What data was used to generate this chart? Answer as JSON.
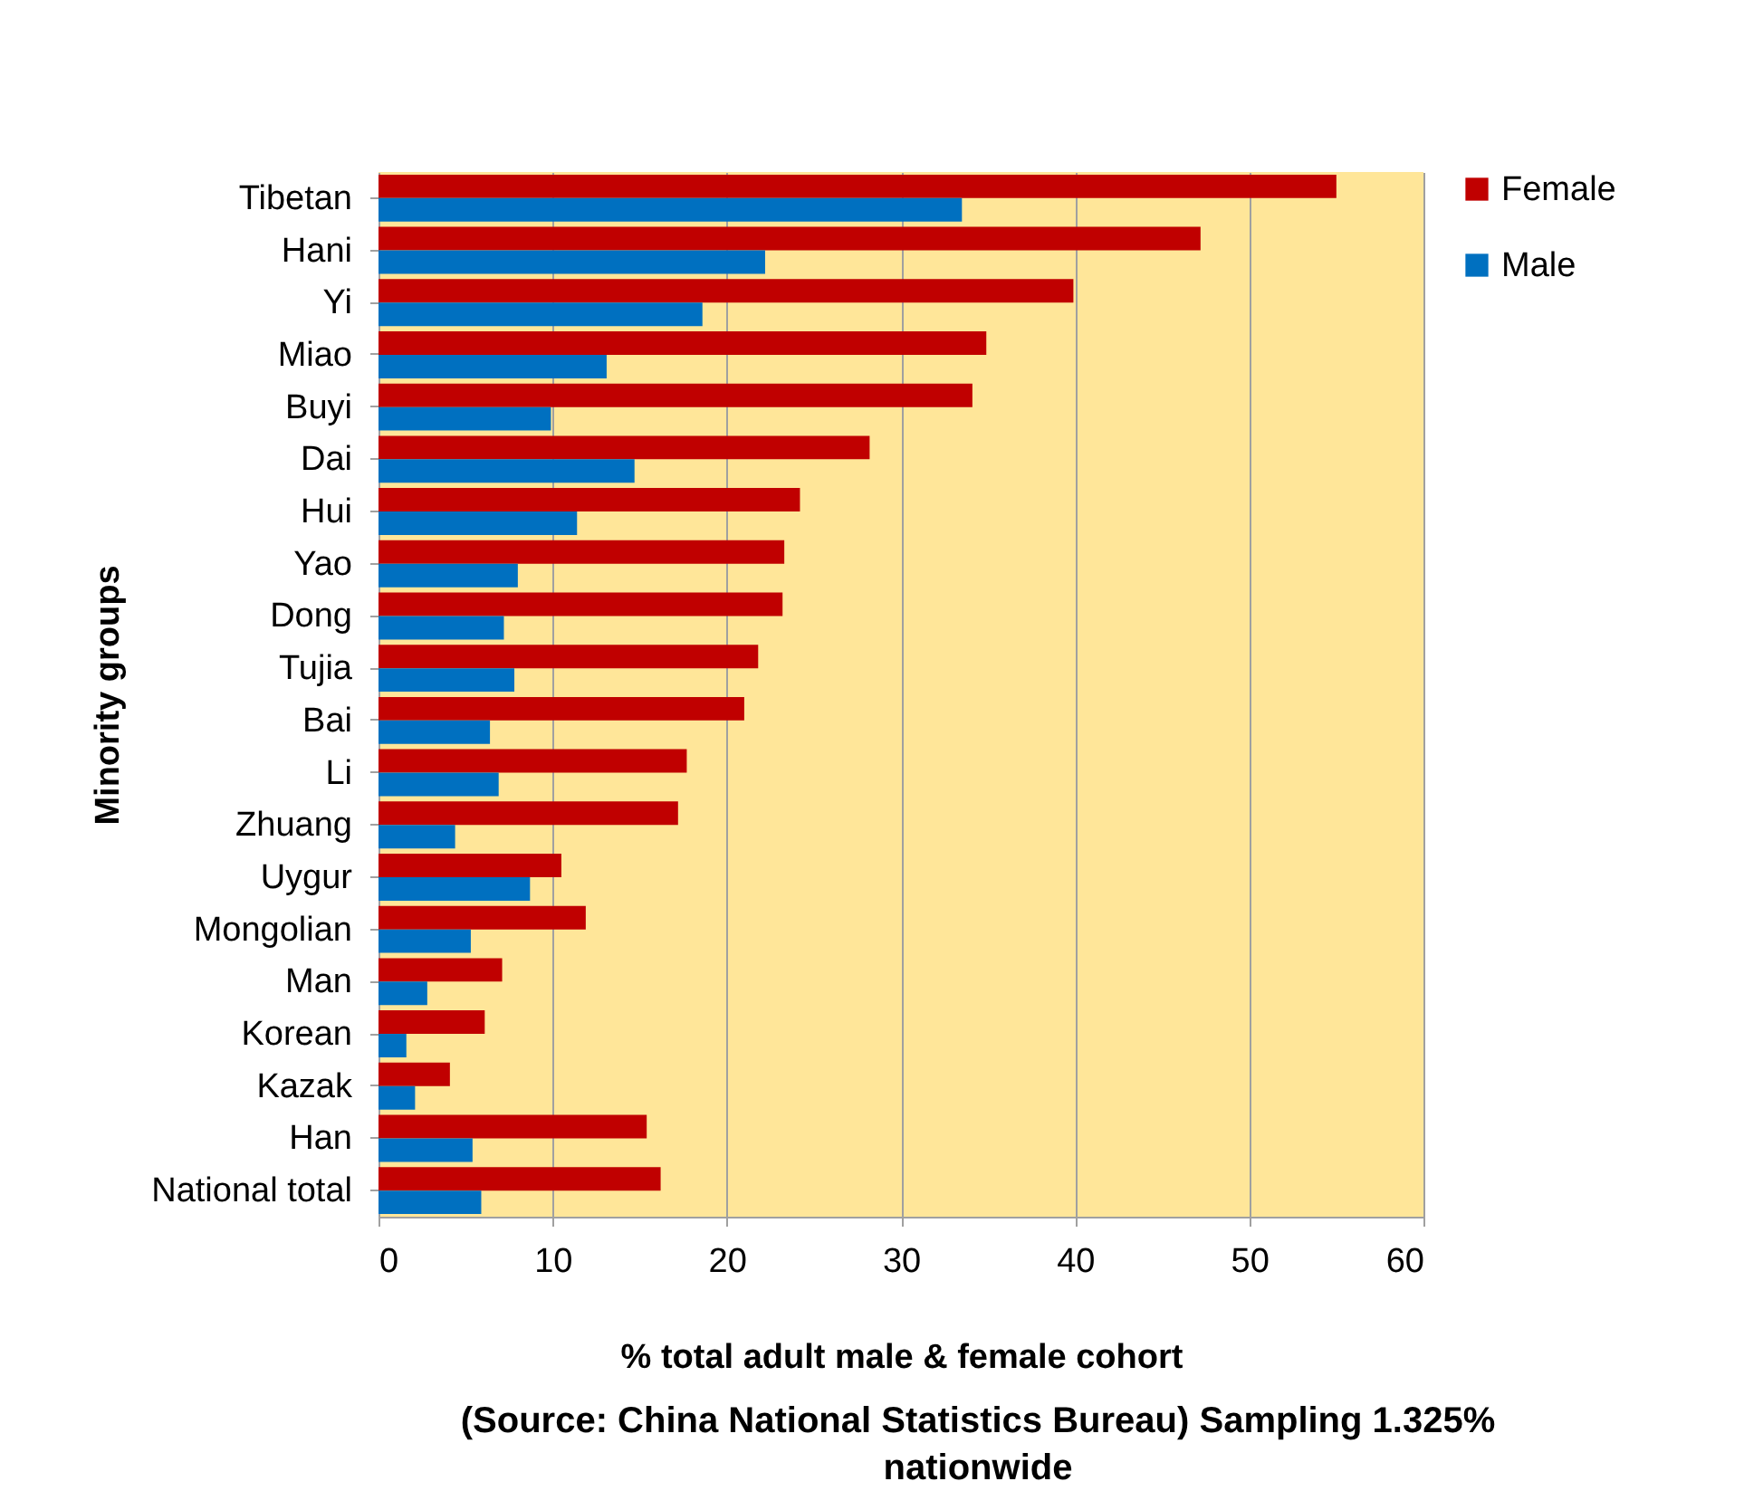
{
  "chart_data": {
    "type": "bar",
    "orientation": "horizontal",
    "categories": [
      "Tibetan",
      "Hani",
      "Yi",
      "Miao",
      "Buyi",
      "Dai",
      "Hui",
      "Yao",
      "Dong",
      "Tujia",
      "Bai",
      "Li",
      "Zhuang",
      "Uygur",
      "Mongolian",
      "Man",
      "Korean",
      "Kazak",
      "Han",
      "National total"
    ],
    "series": [
      {
        "name": "Female",
        "color": "#c00000",
        "values": [
          55.0,
          47.2,
          39.9,
          34.9,
          34.1,
          28.2,
          24.2,
          23.3,
          23.2,
          21.8,
          21.0,
          17.7,
          17.2,
          10.5,
          11.9,
          7.1,
          6.1,
          4.1,
          15.4,
          16.2
        ]
      },
      {
        "name": "Male",
        "color": "#0070c0",
        "values": [
          33.5,
          22.2,
          18.6,
          13.1,
          9.9,
          14.7,
          11.4,
          8.0,
          7.2,
          7.8,
          6.4,
          6.9,
          4.4,
          8.7,
          5.3,
          2.8,
          1.6,
          2.1,
          5.4,
          5.9
        ]
      }
    ],
    "xlabel": "% total adult male & female cohort",
    "ylabel": "Minority groups",
    "annotations": [
      "(Source: China National Statistics Bureau) Sampling 1.325% nationwide"
    ],
    "xlim": [
      0,
      60
    ],
    "xticks": [
      0,
      10,
      20,
      30,
      40,
      50,
      60
    ],
    "grid": "x",
    "legend": "right"
  }
}
